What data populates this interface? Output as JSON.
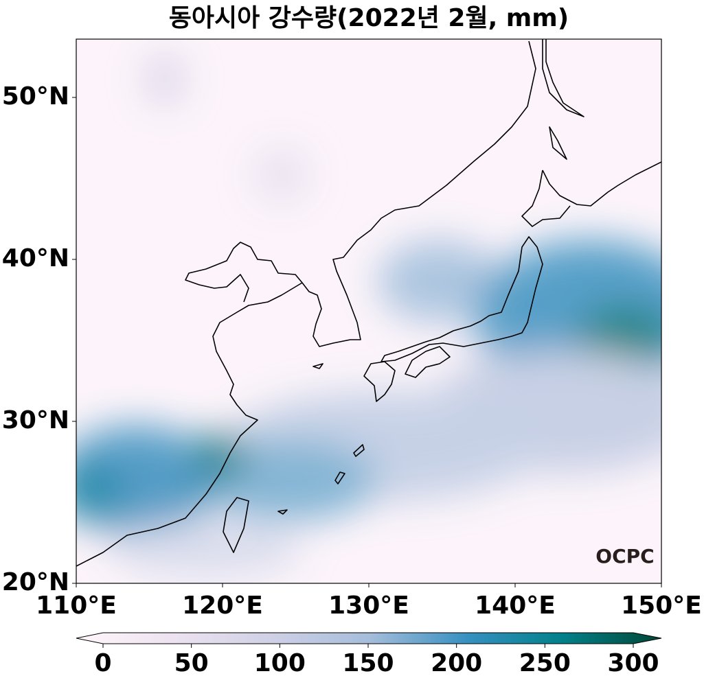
{
  "chart_data": {
    "type": "map",
    "title": "동아시아 강수량(2022년 2월, mm)",
    "xlim": [
      110,
      150
    ],
    "ylim": [
      20,
      53.6
    ],
    "xticks": [
      {
        "value": 110,
        "label": "110°E"
      },
      {
        "value": 120,
        "label": "120°E"
      },
      {
        "value": 130,
        "label": "130°E"
      },
      {
        "value": 140,
        "label": "140°E"
      },
      {
        "value": 150,
        "label": "150°E"
      }
    ],
    "yticks": [
      {
        "value": 20,
        "label": "20°N"
      },
      {
        "value": 30,
        "label": "30°N"
      },
      {
        "value": 40,
        "label": "40°N"
      },
      {
        "value": 50,
        "label": "50°N"
      }
    ],
    "colorbar": {
      "lim": [
        0,
        300
      ],
      "ticks": [
        0,
        50,
        100,
        150,
        200,
        250,
        300
      ],
      "cmap": "PuBuGn"
    },
    "logo": "OCPC"
  }
}
